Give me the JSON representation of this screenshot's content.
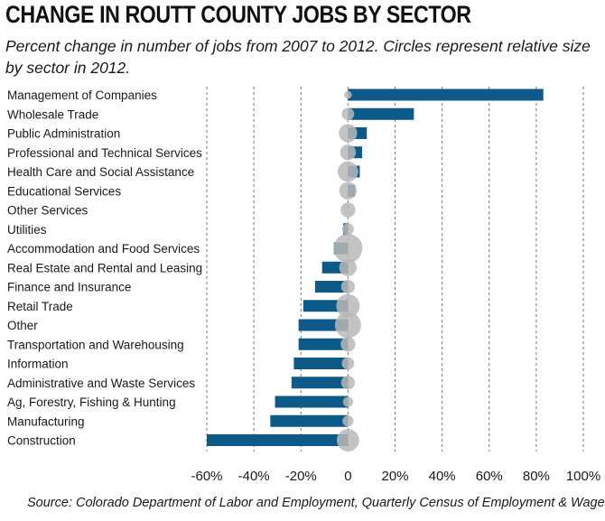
{
  "title": "CHANGE IN ROUTT COUNTY JOBS BY SECTOR",
  "subtitle": "Percent change in number of jobs from 2007 to 2012. Circles represent relative size by sector in 2012.",
  "source": "Source: Colorado Department of Labor and Employment, Quarterly Census of Employment & Wages",
  "colors": {
    "bar": "#0b5a87",
    "circle": "#b9b9b9",
    "grid": "#777777"
  },
  "chart_data": {
    "type": "bar",
    "orientation": "horizontal",
    "categories": [
      "Management of Companies",
      "Wholesale Trade",
      "Public Administration",
      "Professional and Technical Services",
      "Health Care and Social Assistance",
      "Educational Services",
      "Other Services",
      "Utilities",
      "Accommodation and Food Services",
      "Real Estate and Rental and Leasing",
      "Finance and Insurance",
      "Retail Trade",
      "Other",
      "Transportation and Warehousing",
      "Information",
      "Administrative and Waste Services",
      "Ag, Forestry, Fishing & Hunting",
      "Manufacturing",
      "Construction"
    ],
    "values": [
      83,
      28,
      8,
      6,
      5,
      3,
      0,
      -2,
      -6,
      -11,
      -14,
      -19,
      -21,
      -21,
      -23,
      -24,
      -31,
      -33,
      -60
    ],
    "relative_size_2012": [
      0.5,
      3,
      9,
      6,
      12,
      8,
      5,
      2.5,
      28,
      8,
      4,
      17,
      22,
      5,
      3,
      4,
      1.5,
      2,
      15
    ],
    "xlim": [
      -60,
      100
    ],
    "xticks": [
      -60,
      -40,
      -20,
      0,
      20,
      40,
      60,
      80,
      100
    ],
    "xtick_labels": [
      "-60%",
      "-40%",
      "-20%",
      "0",
      "20%",
      "40%",
      "60%",
      "80%",
      "100%"
    ],
    "grid": "vertical dashed",
    "xlabel": "",
    "ylabel": ""
  }
}
